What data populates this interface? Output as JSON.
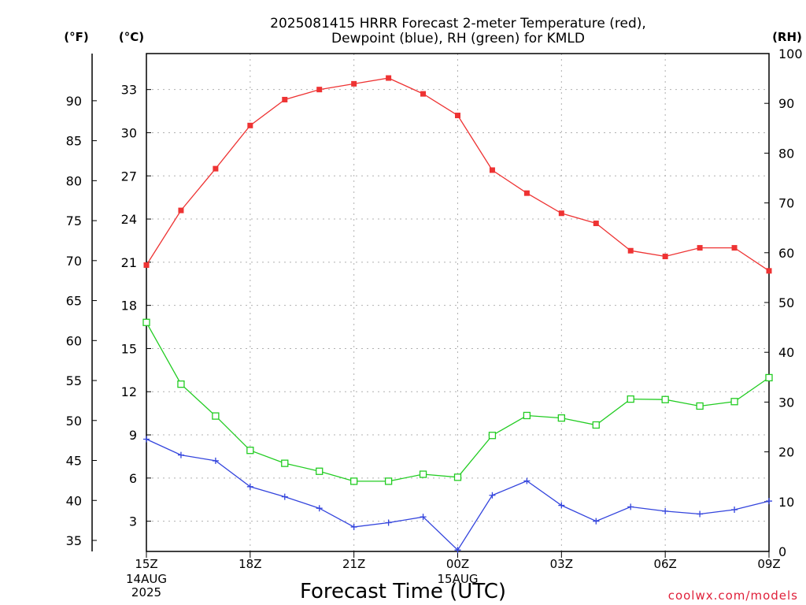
{
  "chart_data": {
    "type": "line",
    "title_line1": "2025081415 HRRR Forecast 2-meter Temperature (red),",
    "title_line2": "Dewpoint (blue), RH (green) for KMLD",
    "units": {
      "fahrenheit": "(°F)",
      "celsius": "(°C)",
      "rh": "(RH)"
    },
    "xlabel": "Forecast Time (UTC)",
    "credit": "coolwx.com/models",
    "x_ticks": [
      {
        "hour": 0,
        "label": "15Z",
        "sub": [
          "14AUG",
          "2025"
        ]
      },
      {
        "hour": 3,
        "label": "18Z",
        "sub": []
      },
      {
        "hour": 6,
        "label": "21Z",
        "sub": []
      },
      {
        "hour": 9,
        "label": "00Z",
        "sub": [
          "15AUG"
        ]
      },
      {
        "hour": 12,
        "label": "03Z",
        "sub": []
      },
      {
        "hour": 15,
        "label": "06Z",
        "sub": []
      },
      {
        "hour": 18,
        "label": "09Z",
        "sub": []
      }
    ],
    "x_range_hours": [
      0,
      18
    ],
    "celsius_axis": {
      "range": [
        0.9,
        35.5
      ],
      "ticks": [
        3,
        6,
        9,
        12,
        15,
        18,
        21,
        24,
        27,
        30,
        33
      ]
    },
    "fahrenheit_axis": {
      "ticks": [
        35,
        40,
        45,
        50,
        55,
        60,
        65,
        70,
        75,
        80,
        85,
        90
      ]
    },
    "rh_axis": {
      "range": [
        0,
        100
      ],
      "ticks": [
        0,
        10,
        20,
        30,
        40,
        50,
        60,
        70,
        80,
        90,
        100
      ]
    },
    "grid": true,
    "hours": [
      0,
      1,
      2,
      3,
      4,
      5,
      6,
      7,
      8,
      9,
      10,
      11,
      12,
      13,
      14,
      15,
      16,
      17,
      18
    ],
    "series": [
      {
        "name": "Temperature",
        "units": "C",
        "color": "#ee3333",
        "marker": "filled-square",
        "values": [
          20.8,
          24.6,
          27.5,
          30.5,
          32.3,
          33.0,
          33.4,
          33.8,
          32.7,
          31.2,
          27.4,
          25.8,
          24.4,
          23.7,
          21.8,
          21.4,
          22.0,
          22.0,
          20.4
        ]
      },
      {
        "name": "Dewpoint",
        "units": "C",
        "color": "#3344dd",
        "marker": "plus",
        "values": [
          8.7,
          7.6,
          7.2,
          5.4,
          4.7,
          3.9,
          2.6,
          2.9,
          3.3,
          1.0,
          4.8,
          5.8,
          4.1,
          3.0,
          4.0,
          3.7,
          3.5,
          3.8,
          4.4
        ]
      },
      {
        "name": "RH",
        "units": "%",
        "color": "#22cc22",
        "marker": "open-square",
        "values": [
          46.0,
          33.6,
          27.2,
          20.3,
          17.7,
          16.1,
          14.1,
          14.1,
          15.5,
          14.9,
          23.3,
          27.3,
          26.8,
          25.4,
          30.6,
          30.5,
          29.2,
          30.1,
          34.9
        ]
      }
    ]
  }
}
